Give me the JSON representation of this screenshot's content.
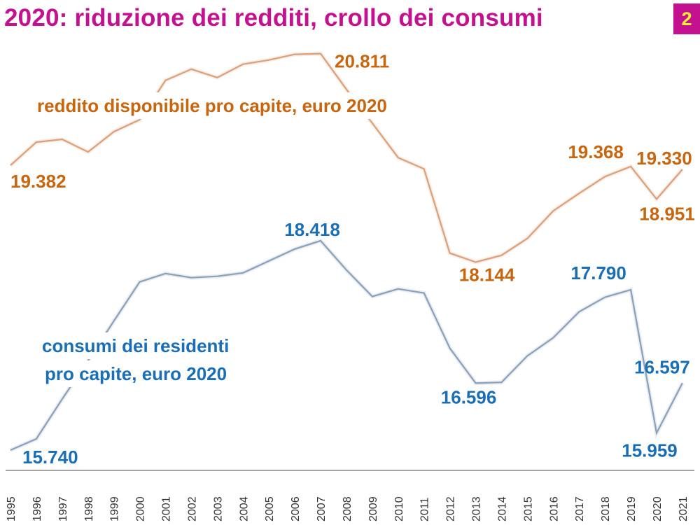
{
  "title": "2020: riduzione dei redditi, crollo dei consumi",
  "slide_number": "2",
  "colors": {
    "title": "#c4118f",
    "badge_bg": "#c4118f",
    "badge_text": "#ffee33",
    "income_text": "#c8650f",
    "income_line": "#d9a07a",
    "consumption_text": "#1a6eb5",
    "consumption_line": "#8aa0b8"
  },
  "chart_data": {
    "type": "line",
    "title": "",
    "xlabel": "",
    "ylabel": "",
    "categories": [
      "1995",
      "1996",
      "1997",
      "1998",
      "1999",
      "2000",
      "2001",
      "2002",
      "2003",
      "2004",
      "2005",
      "2006",
      "2007",
      "2008",
      "2009",
      "2010",
      "2011",
      "2012",
      "2013",
      "2014",
      "2015",
      "2016",
      "2017",
      "2018",
      "2019",
      "2020",
      "2021"
    ],
    "ylim": [
      15480,
      20960
    ],
    "grid": false,
    "series": [
      {
        "name": "reddito disponibile pro capite, euro 2020",
        "values": [
          19382,
          19679,
          19715,
          19553,
          19813,
          19966,
          20469,
          20613,
          20505,
          20676,
          20730,
          20802,
          20811,
          20353,
          19921,
          19481,
          19337,
          18259,
          18144,
          18232,
          18447,
          18798,
          19023,
          19238,
          19368,
          18951,
          19330
        ]
      },
      {
        "name_lines": [
          "consumi dei residenti",
          "pro capite, euro 2020"
        ],
        "name": "consumi dei residenti pro capite, euro 2020",
        "values": [
          15740,
          15883,
          16392,
          16883,
          17392,
          17891,
          17999,
          17945,
          17963,
          18007,
          18159,
          18311,
          18418,
          18043,
          17704,
          17802,
          17749,
          17043,
          16596,
          16606,
          16945,
          17177,
          17508,
          17695,
          17790,
          15959,
          16597
        ]
      }
    ],
    "annotations": [
      {
        "series": 0,
        "year": "1995",
        "text": "19.382"
      },
      {
        "series": 0,
        "year": "2007",
        "text": "20.811"
      },
      {
        "series": 0,
        "year": "2013",
        "text": "18.144"
      },
      {
        "series": 0,
        "year": "2019",
        "text": "19.368"
      },
      {
        "series": 0,
        "year": "2020",
        "text": "18.951"
      },
      {
        "series": 0,
        "year": "2021",
        "text": "19.330"
      },
      {
        "series": 1,
        "year": "1995",
        "text": "15.740"
      },
      {
        "series": 1,
        "year": "2007",
        "text": "18.418"
      },
      {
        "series": 1,
        "year": "2013",
        "text": "16.596"
      },
      {
        "series": 1,
        "year": "2019",
        "text": "17.790"
      },
      {
        "series": 1,
        "year": "2020",
        "text": "15.959"
      },
      {
        "series": 1,
        "year": "2021",
        "text": "16.597"
      }
    ]
  }
}
